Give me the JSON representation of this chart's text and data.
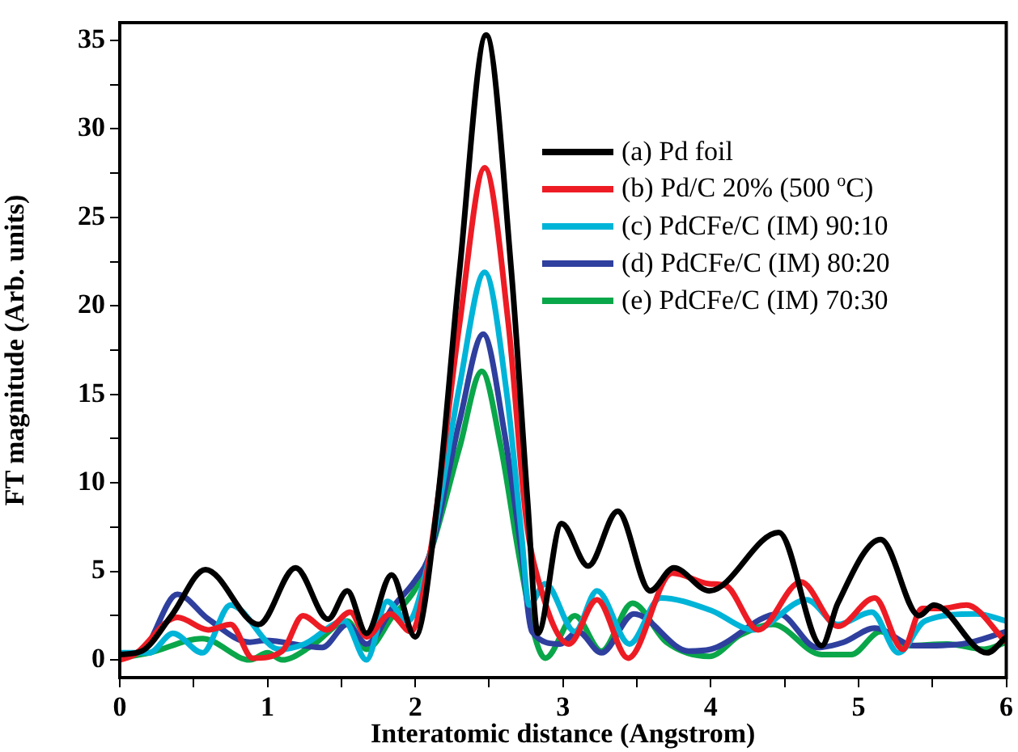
{
  "chart_data": {
    "type": "line",
    "xlabel": "Interatomic distance (Angstrom)",
    "ylabel": "FT magnitude (Arb. units)",
    "xlim": [
      0,
      6
    ],
    "ylim": [
      -1,
      36
    ],
    "xticks": [
      0,
      {
        "value": 0.5,
        "label": null
      },
      1,
      {
        "value": 1.5,
        "label": null
      },
      2,
      {
        "value": 2.5,
        "label": null
      },
      3,
      {
        "value": 3.5,
        "label": null
      },
      4,
      {
        "value": 4.5,
        "label": null
      },
      5,
      {
        "value": 5.5,
        "label": null
      },
      6
    ],
    "yticks": [
      0,
      {
        "value": 2.5,
        "label": null
      },
      5,
      {
        "value": 7.5,
        "label": null
      },
      10,
      {
        "value": 12.5,
        "label": null
      },
      15,
      {
        "value": 17.5,
        "label": null
      },
      20,
      {
        "value": 22.5,
        "label": null
      },
      25,
      {
        "value": 27.5,
        "label": null
      },
      30,
      {
        "value": 32.5,
        "label": null
      },
      35
    ],
    "grid": false,
    "legend": "top right",
    "marker": "none",
    "line_style": "solid",
    "series": [
      {
        "name": "(a) Pd foil",
        "color": "#000000",
        "x": [
          0,
          0.15,
          0.35,
          0.58,
          0.94,
          1.19,
          1.41,
          1.54,
          1.67,
          1.84,
          2.0,
          2.15,
          2.3,
          2.48,
          2.65,
          2.76,
          2.83,
          2.99,
          3.17,
          3.37,
          3.59,
          3.75,
          3.99,
          4.46,
          4.75,
          4.86,
          5.15,
          5.41,
          5.51,
          5.87,
          6.0
        ],
        "values": [
          0.3,
          0.5,
          2.5,
          5.1,
          2.0,
          5.2,
          2.3,
          3.9,
          1.5,
          4.8,
          1.3,
          8.9,
          22,
          35.3,
          22,
          9,
          1.5,
          7.7,
          5.3,
          8.4,
          3.9,
          5.2,
          3.9,
          7.2,
          0.8,
          3.2,
          6.8,
          2.5,
          3.1,
          0.4,
          1.3
        ]
      },
      {
        "name": "(b) Pd/C 20% (500 $^{o}$C)",
        "color": "#ed1c24",
        "x": [
          0,
          0.1,
          0.39,
          0.6,
          0.75,
          0.9,
          1.1,
          1.24,
          1.4,
          1.56,
          1.67,
          1.83,
          1.97,
          2.1,
          2.3,
          2.47,
          2.63,
          2.75,
          2.83,
          3.04,
          3.23,
          3.44,
          3.74,
          3.99,
          4.1,
          4.32,
          4.61,
          4.86,
          5.11,
          5.3,
          5.43,
          5.56,
          5.73,
          6.0
        ],
        "values": [
          0,
          0.3,
          2.4,
          1.7,
          2.0,
          0.1,
          0.5,
          2.5,
          1.7,
          2.7,
          1.3,
          2.6,
          1.6,
          6,
          19,
          27.8,
          19,
          8,
          4.6,
          0.9,
          3.4,
          0.1,
          4.9,
          4.3,
          4.2,
          1.7,
          4.4,
          1.9,
          3.5,
          0.6,
          2.9,
          2.9,
          3.1,
          1.0
        ]
      },
      {
        "name": "(c) PdCFe/C (IM) 90:10",
        "color": "#00b4d8",
        "x": [
          0,
          0.2,
          0.36,
          0.56,
          0.75,
          1.08,
          1.25,
          1.52,
          1.67,
          1.81,
          1.95,
          2.1,
          2.3,
          2.47,
          2.62,
          2.72,
          2.77,
          2.88,
          3.08,
          3.23,
          3.45,
          3.66,
          4.0,
          4.29,
          4.65,
          4.86,
          5.09,
          5.27,
          5.45,
          5.8,
          6.0
        ],
        "values": [
          0.4,
          0.4,
          1.5,
          0.4,
          3.1,
          0.6,
          0.9,
          2.2,
          0.0,
          3.3,
          2.2,
          6,
          15.5,
          21.9,
          15,
          7,
          3.1,
          4.3,
          1.6,
          3.9,
          0.9,
          3.5,
          2.8,
          1.7,
          3.4,
          2.0,
          2.7,
          0.4,
          2.2,
          2.6,
          2.2
        ]
      },
      {
        "name": "(d) PdCFe/C (IM) 80:20",
        "color": "#2e3f9e",
        "x": [
          0,
          0.15,
          0.39,
          0.6,
          0.88,
          0.98,
          1.37,
          1.54,
          1.67,
          1.85,
          2.0,
          2.1,
          2.3,
          2.46,
          2.6,
          2.72,
          2.79,
          2.98,
          3.1,
          3.26,
          3.48,
          3.85,
          4.0,
          4.46,
          4.72,
          4.9,
          5.11,
          5.38,
          5.7,
          6.0
        ],
        "values": [
          0.3,
          0.5,
          3.7,
          2.3,
          1.0,
          1.1,
          0.7,
          2.0,
          0.9,
          3.0,
          4.5,
          6,
          13.5,
          18.4,
          13,
          6,
          1.6,
          0.9,
          1.6,
          0.4,
          2.6,
          0.5,
          0.6,
          2.6,
          0.7,
          1.0,
          1.8,
          0.8,
          0.9,
          1.6
        ]
      },
      {
        "name": "(e) PdCFe/C (IM) 70:30",
        "color": "#0aa64a",
        "x": [
          0,
          0.2,
          0.56,
          0.88,
          1.0,
          1.1,
          1.3,
          1.54,
          1.67,
          1.85,
          2.0,
          2.1,
          2.3,
          2.45,
          2.58,
          2.7,
          2.81,
          2.88,
          3.08,
          3.26,
          3.47,
          3.7,
          3.99,
          4.2,
          4.42,
          4.75,
          4.95,
          5.15,
          5.33,
          5.6,
          5.85,
          6.0
        ],
        "values": [
          0.1,
          0.4,
          1.2,
          0.0,
          0.4,
          0.0,
          0.8,
          2.2,
          0.6,
          2.5,
          4.0,
          6,
          12,
          16.3,
          12,
          6,
          1.3,
          0.1,
          2.5,
          0.5,
          3.2,
          1.0,
          0.2,
          1.4,
          2.0,
          0.3,
          0.3,
          1.6,
          0.8,
          0.9,
          0.6,
          1.0
        ]
      }
    ]
  }
}
